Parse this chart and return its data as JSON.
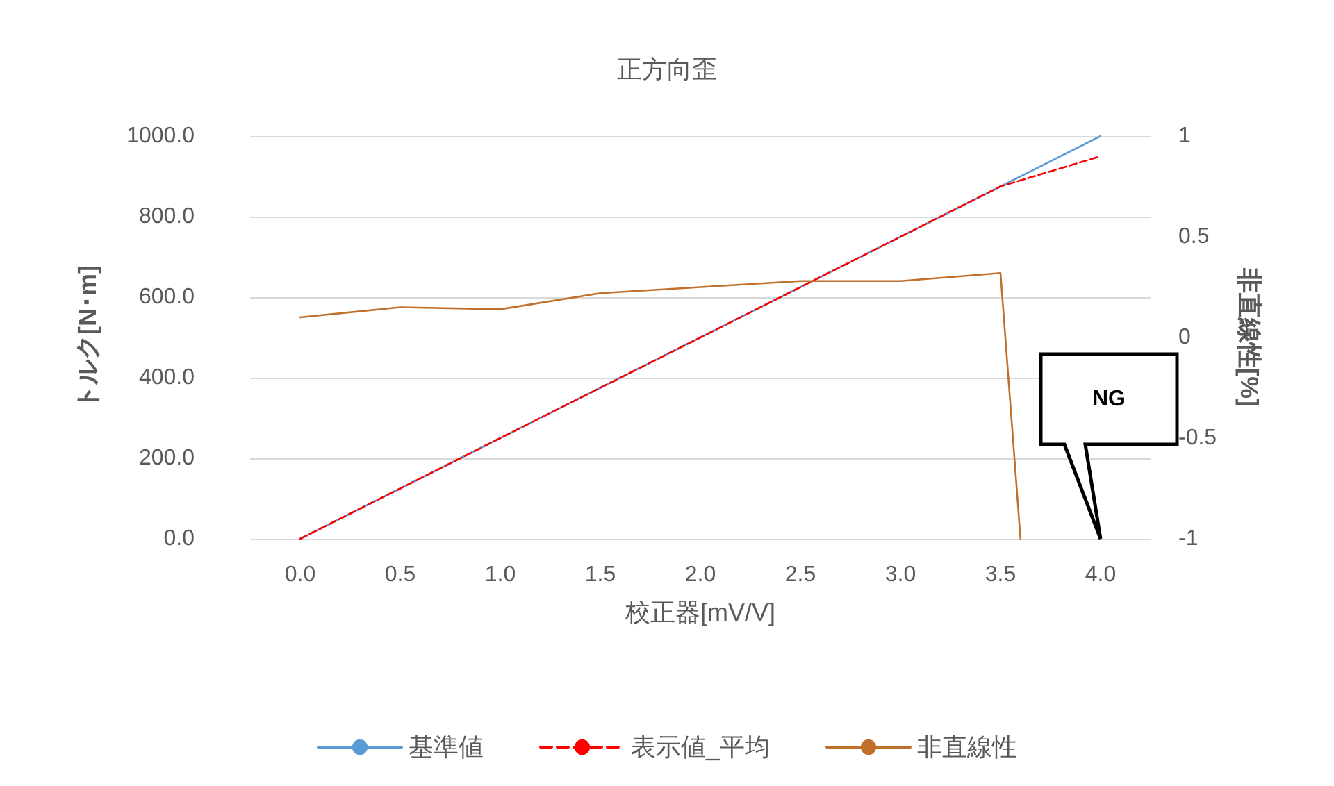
{
  "chart_data": {
    "type": "line",
    "title": "正方向歪",
    "xlabel": "校正器[mV/V]",
    "ylabel": "トルク[N･m]",
    "y2label": "非直線性[%]",
    "x": [
      0,
      0.5,
      1,
      1.5,
      2,
      2.5,
      3,
      3.5,
      4
    ],
    "series": [
      {
        "name": "基準値",
        "color": "#5b9bd5",
        "line_style": "solid",
        "values": [
          0,
          125,
          250,
          375,
          500,
          625,
          750,
          875,
          1000
        ]
      },
      {
        "name": "表示値_平均",
        "color": "#ff0000",
        "line_style": "dashed",
        "values": [
          0,
          125,
          250,
          375,
          500,
          625,
          750,
          875,
          950
        ]
      },
      {
        "name": "非直線性",
        "color": "#c0702a",
        "line_style": "solid",
        "axis": "y2",
        "x": [
          0,
          0.5,
          1,
          1.5,
          2,
          2.5,
          3,
          3.5,
          3.6
        ],
        "values": [
          0.1,
          0.15,
          0.14,
          0.22,
          0.25,
          0.28,
          0.28,
          0.32,
          -1
        ]
      }
    ],
    "xlim": [
      -0.25,
      4.25
    ],
    "xticks": [
      {
        "value": 0,
        "label": "0.0"
      },
      {
        "value": 0.5,
        "label": "0.5"
      },
      {
        "value": 1,
        "label": "1.0"
      },
      {
        "value": 1.5,
        "label": "1.5"
      },
      {
        "value": 2,
        "label": "2.0"
      },
      {
        "value": 2.5,
        "label": "2.5"
      },
      {
        "value": 3,
        "label": "3.0"
      },
      {
        "value": 3.5,
        "label": "3.5"
      },
      {
        "value": 4,
        "label": "4.0"
      }
    ],
    "ylim": [
      0,
      1000
    ],
    "yticks": [
      {
        "value": 0,
        "label": "0.0"
      },
      {
        "value": 200,
        "label": "200.0"
      },
      {
        "value": 400,
        "label": "400.0"
      },
      {
        "value": 600,
        "label": "600.0"
      },
      {
        "value": 800,
        "label": "800.0"
      },
      {
        "value": 1000,
        "label": "1000.0"
      }
    ],
    "y2lim": [
      -1,
      1
    ],
    "y2ticks": [
      -1,
      -0.5,
      0,
      0.5,
      1
    ],
    "annotations": [
      "NG"
    ],
    "grid": "y",
    "legend": "bottom",
    "marker": "none"
  }
}
